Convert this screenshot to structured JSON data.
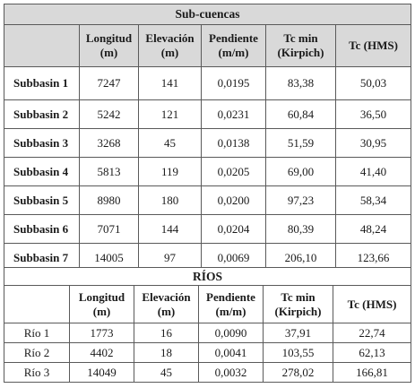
{
  "subbasins": {
    "title": "Sub-cuencas",
    "columns": [
      {
        "line1": "Longitud",
        "line2": "(m)"
      },
      {
        "line1": "Elevación",
        "line2": "(m)"
      },
      {
        "line1": "Pendiente",
        "line2": "(m/m)"
      },
      {
        "line1": "Tc min",
        "line2": "(Kirpich)"
      },
      {
        "line1": "Tc (HMS)",
        "line2": ""
      }
    ],
    "rows": [
      {
        "name": "Subbasin 1",
        "values": [
          "7247",
          "141",
          "0,0195",
          "83,38",
          "50,03"
        ]
      },
      {
        "name": "Subbasin 2",
        "values": [
          "5242",
          "121",
          "0,0231",
          "60,84",
          "36,50"
        ]
      },
      {
        "name": "Subbasin 3",
        "values": [
          "3268",
          "45",
          "0,0138",
          "51,59",
          "30,95"
        ]
      },
      {
        "name": "Subbasin 4",
        "values": [
          "5813",
          "119",
          "0,0205",
          "69,00",
          "41,40"
        ]
      },
      {
        "name": "Subbasin 5",
        "values": [
          "8980",
          "180",
          "0,0200",
          "97,23",
          "58,34"
        ]
      },
      {
        "name": "Subbasin 6",
        "values": [
          "7071",
          "144",
          "0,0204",
          "80,39",
          "48,24"
        ]
      },
      {
        "name": "Subbasin 7",
        "values": [
          "14005",
          "97",
          "0,0069",
          "206,10",
          "123,66"
        ]
      }
    ]
  },
  "rivers": {
    "title": "RÍOS",
    "columns": [
      {
        "line1": "Longitud",
        "line2": "(m)"
      },
      {
        "line1": "Elevación",
        "line2": "(m)"
      },
      {
        "line1": "Pendiente",
        "line2": "(m/m)"
      },
      {
        "line1": "Tc min",
        "line2": "(Kirpich)"
      },
      {
        "line1": "Tc (HMS)",
        "line2": ""
      }
    ],
    "rows": [
      {
        "name": "Río 1",
        "values": [
          "1773",
          "16",
          "0,0090",
          "37,91",
          "22,74"
        ]
      },
      {
        "name": "Río 2",
        "values": [
          "4402",
          "18",
          "0,0041",
          "103,55",
          "62,13"
        ]
      },
      {
        "name": "Río 3",
        "values": [
          "14049",
          "45",
          "0,0032",
          "278,02",
          "166,81"
        ]
      }
    ]
  }
}
